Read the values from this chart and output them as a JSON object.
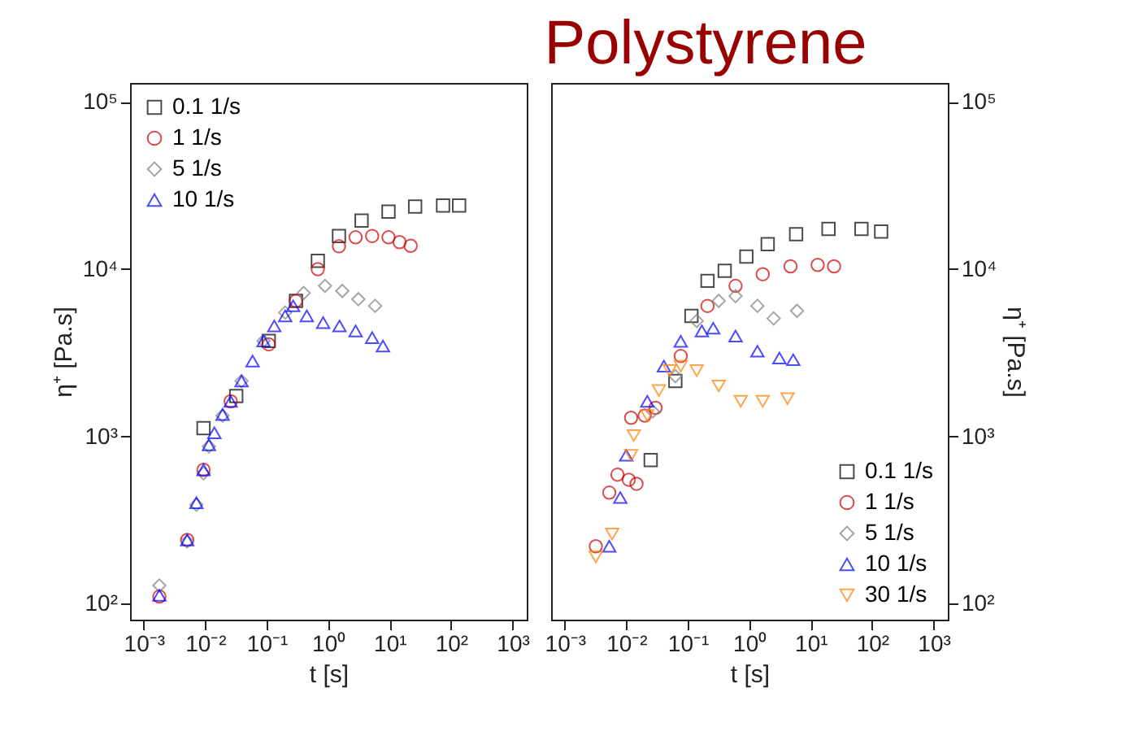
{
  "chart_data": [
    {
      "type": "scatter",
      "xlabel": "t [s]",
      "ylabel": "η⁺ [Pa.s]",
      "log": "xy",
      "grid": false,
      "legend": "top left",
      "xlim": [
        0.0006,
        1700
      ],
      "ylim": [
        80,
        130000
      ],
      "xticks": [
        {
          "value": 0.001,
          "label": "10⁻³"
        },
        {
          "value": 0.01,
          "label": "10⁻²"
        },
        {
          "value": 0.1,
          "label": "10⁻¹"
        },
        {
          "value": 1,
          "label": "10⁰"
        },
        {
          "value": 10,
          "label": "10¹"
        },
        {
          "value": 100,
          "label": "10²"
        },
        {
          "value": 1000,
          "label": "10³"
        }
      ],
      "yticks": [
        {
          "value": 100,
          "label": "10²"
        },
        {
          "value": 1000,
          "label": "10³"
        },
        {
          "value": 10000,
          "label": "10⁴"
        },
        {
          "value": 100000,
          "label": "10⁵"
        }
      ],
      "series": [
        {
          "name": "0.1 1/s",
          "color": "#000000",
          "marker": "square",
          "x": [
            0.0094,
            0.032,
            0.108,
            0.3,
            0.68,
            1.5,
            3.5,
            9.6,
            26,
            74,
            135
          ],
          "values": [
            1120,
            1740,
            3720,
            6460,
            11200,
            15800,
            19500,
            22100,
            23700,
            24000,
            24000
          ]
        },
        {
          "name": "1 1/s",
          "color": "#cc0000",
          "marker": "circle",
          "x": [
            0.0018,
            0.0051,
            0.0094,
            0.026,
            0.108,
            0.3,
            0.68,
            1.5,
            2.8,
            5.2,
            9.6,
            14.5,
            22
          ],
          "values": [
            110,
            240,
            630,
            1620,
            3550,
            6460,
            10000,
            13700,
            15500,
            15800,
            15500,
            14500,
            13800
          ]
        },
        {
          "name": "5 1/s",
          "color": "#808080",
          "marker": "diamond",
          "x": [
            0.0018,
            0.0051,
            0.0072,
            0.0094,
            0.0115,
            0.0192,
            0.039,
            0.089,
            0.2,
            0.4,
            0.89,
            1.7,
            3.1,
            5.8
          ],
          "values": [
            128,
            235,
            390,
            600,
            870,
            1330,
            2140,
            3720,
            5500,
            7200,
            7940,
            7410,
            6610,
            6030
          ]
        },
        {
          "name": "10 1/s",
          "color": "#0000ff",
          "marker": "triangle",
          "x": [
            0.0018,
            0.0051,
            0.0072,
            0.0094,
            0.0115,
            0.0141,
            0.0192,
            0.026,
            0.039,
            0.059,
            0.089,
            0.133,
            0.2,
            0.27,
            0.45,
            0.83,
            1.53,
            2.8,
            5.2,
            7.8
          ],
          "values": [
            112,
            240,
            400,
            630,
            890,
            1050,
            1350,
            1620,
            2140,
            2820,
            3720,
            4570,
            5250,
            6030,
            5250,
            4790,
            4570,
            4270,
            3890,
            3470
          ]
        }
      ]
    },
    {
      "type": "scatter",
      "title": "Polystyrene",
      "xlabel": "t [s]",
      "ylabel": "η⁺ [Pa.s]",
      "log": "xy",
      "grid": false,
      "legend": "bottom right",
      "xlim": [
        0.0006,
        1700
      ],
      "ylim": [
        80,
        130000
      ],
      "xticks": [
        {
          "value": 0.001,
          "label": "10⁻³"
        },
        {
          "value": 0.01,
          "label": "10⁻²"
        },
        {
          "value": 0.1,
          "label": "10⁻¹"
        },
        {
          "value": 1,
          "label": "10⁰"
        },
        {
          "value": 10,
          "label": "10¹"
        },
        {
          "value": 100,
          "label": "10²"
        },
        {
          "value": 1000,
          "label": "10³"
        }
      ],
      "yticks": [
        {
          "value": 100,
          "label": "10²"
        },
        {
          "value": 1000,
          "label": "10³"
        },
        {
          "value": 10000,
          "label": "10⁴"
        },
        {
          "value": 100000,
          "label": "10⁵"
        }
      ],
      "series": [
        {
          "name": "0.1 1/s",
          "color": "#000000",
          "marker": "square",
          "x": [
            0.025,
            0.063,
            0.115,
            0.21,
            0.4,
            0.9,
            2.0,
            5.8,
            19.5,
            67,
            140
          ],
          "values": [
            720,
            2140,
            5250,
            8510,
            9770,
            11900,
            14100,
            16200,
            17400,
            17400,
            16800
          ]
        },
        {
          "name": "1 1/s",
          "color": "#cc0000",
          "marker": "circle",
          "x": [
            0.0032,
            0.0053,
            0.0072,
            0.011,
            0.0147,
            0.012,
            0.02,
            0.03,
            0.077,
            0.21,
            0.6,
            1.66,
            4.7,
            13,
            24
          ],
          "values": [
            220,
            460,
            590,
            550,
            520,
            1290,
            1330,
            1480,
            3020,
            6030,
            7940,
            9330,
            10400,
            10600,
            10400
          ]
        },
        {
          "name": "5 1/s",
          "color": "#808080",
          "marker": "diamond",
          "x": [
            0.027,
            0.063,
            0.14,
            0.32,
            0.6,
            1.36,
            2.5,
            6
          ],
          "values": [
            1410,
            2290,
            4900,
            6460,
            6900,
            6030,
            5070,
            5630
          ]
        },
        {
          "name": "10 1/s",
          "color": "#0000ff",
          "marker": "triangle",
          "x": [
            0.0053,
            0.008,
            0.01,
            0.022,
            0.041,
            0.077,
            0.17,
            0.26,
            0.6,
            1.36,
            3.1,
            5.2
          ],
          "values": [
            220,
            430,
            770,
            1620,
            2630,
            3700,
            4270,
            4430,
            3980,
            3230,
            2940,
            2870
          ]
        },
        {
          "name": "30 1/s",
          "color": "#ff8000",
          "marker": "triangle-down",
          "x": [
            0.0032,
            0.0059,
            0.012,
            0.0133,
            0.022,
            0.034,
            0.051,
            0.077,
            0.14,
            0.32,
            0.73,
            1.66,
            4.2
          ],
          "values": [
            190,
            260,
            770,
            1010,
            1330,
            1880,
            2470,
            2630,
            2470,
            2000,
            1620,
            1620,
            1680
          ]
        }
      ]
    }
  ]
}
